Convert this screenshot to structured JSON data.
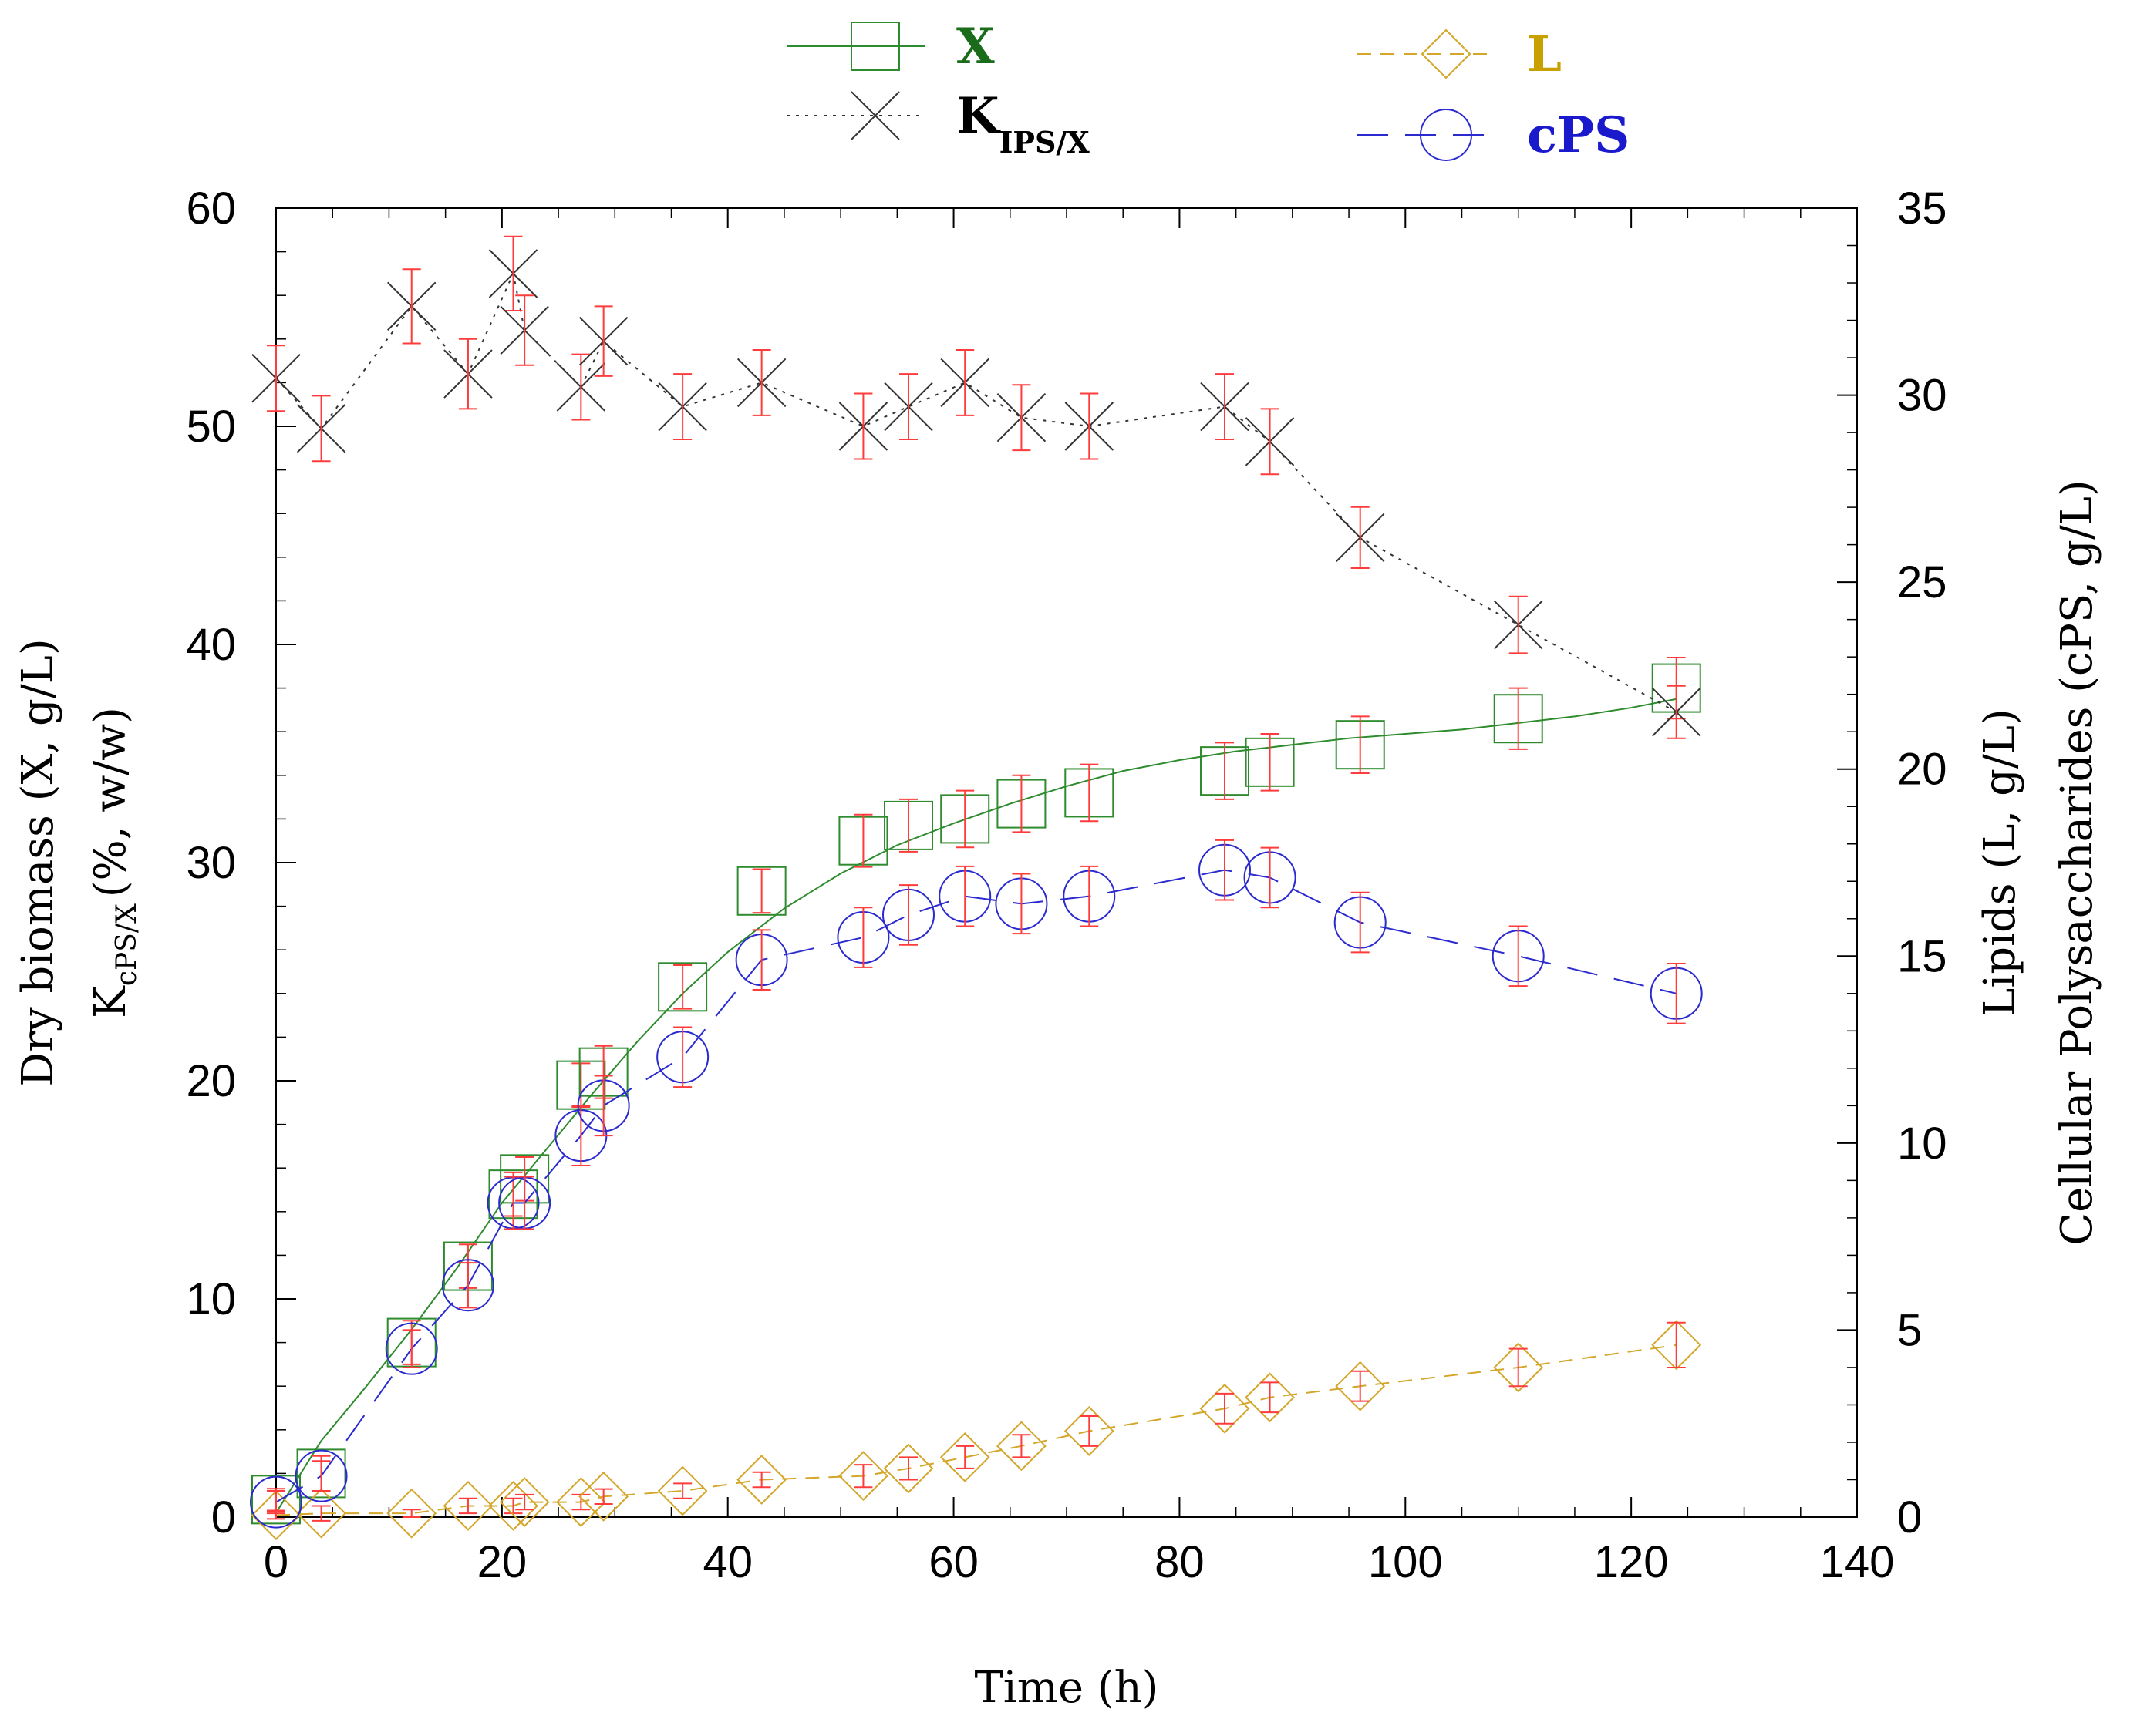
{
  "chart_data": {
    "type": "scatter",
    "xlabel": "Time (h)",
    "ylabel_left": [
      "Dry biomass (X, g/L)",
      "K",
      "cPS/X",
      "(%, w/w)"
    ],
    "ylabel_right": [
      "Lipids (L, g/L)",
      "Cellular Polysaccharides (cPS, g/L)"
    ],
    "xlim": [
      0,
      140
    ],
    "ylim_left": [
      0,
      60
    ],
    "ylim_right": [
      0,
      35
    ],
    "x_ticks": [
      0,
      20,
      40,
      60,
      80,
      100,
      120,
      140
    ],
    "y_left_ticks": [
      0,
      10,
      20,
      30,
      40,
      50,
      60
    ],
    "y_right_ticks": [
      0,
      5,
      10,
      15,
      20,
      25,
      30,
      35
    ],
    "legend": {
      "position": "top",
      "entries": [
        {
          "key": "X",
          "label": "X",
          "sub": "",
          "color": "#1a6b1a"
        },
        {
          "key": "L",
          "label": "L",
          "sub": "",
          "color": "#c8a000"
        },
        {
          "key": "K",
          "label": "K",
          "sub": "IPS/X",
          "color": "#000000"
        },
        {
          "key": "cPS",
          "label": "cPS",
          "sub": "",
          "color": "#1a1acc"
        }
      ]
    },
    "series": [
      {
        "name": "X",
        "axis": "left",
        "marker": "square",
        "color": "#2e8b2e",
        "line": "solid",
        "x": [
          0,
          4,
          12,
          17,
          21,
          22,
          27,
          29,
          36,
          43,
          52,
          56,
          61,
          66,
          72,
          84,
          88,
          96,
          110,
          124
        ],
        "y": [
          0.8,
          2.0,
          8.0,
          11.5,
          14.8,
          15.5,
          19.8,
          20.4,
          24.3,
          28.7,
          31.0,
          31.7,
          32.0,
          32.7,
          33.2,
          34.2,
          34.6,
          35.4,
          36.6,
          38.0
        ],
        "err": [
          0.5,
          0.8,
          1.0,
          1.0,
          1.0,
          1.0,
          1.0,
          1.2,
          1.0,
          1.0,
          1.2,
          1.2,
          1.3,
          1.3,
          1.3,
          1.3,
          1.3,
          1.3,
          1.4,
          1.4
        ],
        "fit_x": [
          0,
          4,
          8,
          12,
          16,
          20,
          24,
          28,
          32,
          36,
          40,
          45,
          50,
          55,
          60,
          65,
          70,
          75,
          80,
          85,
          90,
          95,
          100,
          105,
          110,
          115,
          120,
          124
        ],
        "fit_y": [
          0.2,
          3.5,
          6.0,
          8.6,
          11.4,
          14.4,
          16.9,
          19.4,
          21.8,
          24.0,
          25.9,
          27.9,
          29.5,
          30.8,
          31.8,
          32.7,
          33.5,
          34.2,
          34.7,
          35.1,
          35.4,
          35.7,
          35.9,
          36.1,
          36.4,
          36.7,
          37.1,
          37.5
        ]
      },
      {
        "name": "K",
        "axis": "left",
        "marker": "cross",
        "color": "#333333",
        "line": "dotted",
        "x": [
          0,
          4,
          12,
          17,
          21,
          22,
          27,
          29,
          36,
          43,
          52,
          56,
          61,
          66,
          72,
          84,
          88,
          96,
          110,
          124
        ],
        "y": [
          52.2,
          49.9,
          55.5,
          52.4,
          57.0,
          54.4,
          51.8,
          53.9,
          50.9,
          52.0,
          50.0,
          50.9,
          52.0,
          50.4,
          50.0,
          50.9,
          49.3,
          44.9,
          40.9,
          36.9
        ],
        "err": [
          1.5,
          1.5,
          1.7,
          1.6,
          1.7,
          1.6,
          1.5,
          1.6,
          1.5,
          1.5,
          1.5,
          1.5,
          1.5,
          1.5,
          1.5,
          1.5,
          1.5,
          1.4,
          1.3,
          1.2
        ]
      },
      {
        "name": "L",
        "axis": "right",
        "marker": "diamond",
        "color": "#d4a62a",
        "line": "dashed",
        "x": [
          0,
          4,
          12,
          17,
          21,
          22,
          27,
          29,
          36,
          43,
          52,
          56,
          61,
          66,
          72,
          84,
          88,
          96,
          110,
          124
        ],
        "y": [
          0.05,
          0.1,
          0.1,
          0.3,
          0.3,
          0.4,
          0.4,
          0.55,
          0.7,
          1.0,
          1.1,
          1.3,
          1.6,
          1.9,
          2.3,
          2.9,
          3.2,
          3.5,
          4.0,
          4.6
        ],
        "err": [
          0.1,
          0.2,
          0.1,
          0.2,
          0.2,
          0.2,
          0.2,
          0.2,
          0.2,
          0.2,
          0.3,
          0.3,
          0.3,
          0.3,
          0.4,
          0.4,
          0.4,
          0.4,
          0.5,
          0.6
        ]
      },
      {
        "name": "cPS",
        "axis": "right",
        "marker": "circle",
        "color": "#2a2ad0",
        "line": "longdash",
        "x": [
          0,
          4,
          12,
          17,
          21,
          22,
          27,
          29,
          36,
          43,
          52,
          56,
          61,
          66,
          72,
          84,
          88,
          96,
          110,
          124
        ],
        "y": [
          0.4,
          1.1,
          4.5,
          6.2,
          8.4,
          8.4,
          10.2,
          11.0,
          12.3,
          14.9,
          15.5,
          16.1,
          16.6,
          16.4,
          16.6,
          17.3,
          17.1,
          15.9,
          15.0,
          14.0
        ],
        "err": [
          0.3,
          0.4,
          0.5,
          0.6,
          0.7,
          0.7,
          0.8,
          0.8,
          0.8,
          0.8,
          0.8,
          0.8,
          0.8,
          0.8,
          0.8,
          0.8,
          0.8,
          0.8,
          0.8,
          0.8
        ]
      }
    ]
  }
}
